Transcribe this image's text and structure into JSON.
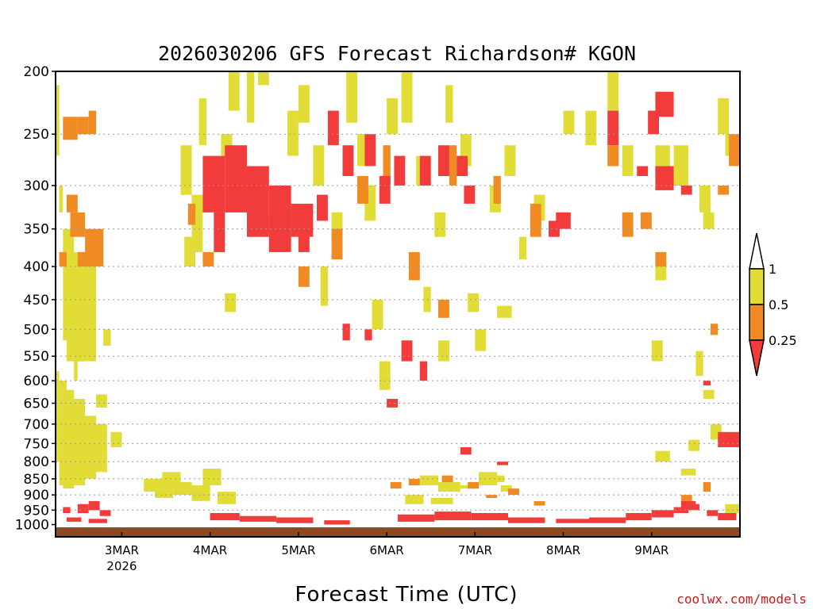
{
  "chart_data": {
    "type": "heatmap",
    "title": "2026030206 GFS Forecast Richardson# KGON",
    "xlabel": "Forecast Time (UTC)",
    "ylabel": "",
    "credit": "coolwx.com/models",
    "y_ticks": [
      "200",
      "250",
      "300",
      "350",
      "400",
      "450",
      "500",
      "550",
      "600",
      "650",
      "700",
      "750",
      "800",
      "850",
      "900",
      "950",
      "1000"
    ],
    "y_range_hpa": [
      200,
      1010
    ],
    "x_ticks": [
      {
        "label": "3MAR",
        "sublabel": "2026",
        "hour": 18
      },
      {
        "label": "4MAR",
        "sublabel": "",
        "hour": 42
      },
      {
        "label": "5MAR",
        "sublabel": "",
        "hour": 66
      },
      {
        "label": "6MAR",
        "sublabel": "",
        "hour": 90
      },
      {
        "label": "7MAR",
        "sublabel": "",
        "hour": 114
      },
      {
        "label": "8MAR",
        "sublabel": "",
        "hour": 138
      },
      {
        "label": "9MAR",
        "sublabel": "",
        "hour": 162
      }
    ],
    "x_range_hours": [
      0,
      186
    ],
    "legend": {
      "levels": [
        "1",
        "0.5",
        "0.25"
      ],
      "bins": [
        {
          "range": "above 1",
          "color": "#ffffff"
        },
        {
          "range": "0.5 to 1",
          "color": "#e2dc36"
        },
        {
          "range": "0.25 to 0.5",
          "color": "#f08a22"
        },
        {
          "range": "below 0.25",
          "color": "#f23c3c"
        }
      ]
    },
    "colors": {
      "yellow": "#e2dc36",
      "orange": "#f08a22",
      "red": "#f23c3c",
      "ground": "#8b4a22"
    },
    "series": [
      {
        "name": "Ri 0.5-1 (yellow)",
        "cells": [
          [
            0,
            1,
            210,
            270
          ],
          [
            0,
            1,
            580,
            800
          ],
          [
            1,
            3,
            600,
            870
          ],
          [
            2,
            5,
            620,
            880
          ],
          [
            4,
            8,
            640,
            870
          ],
          [
            6,
            11,
            680,
            850
          ],
          [
            2,
            5,
            350,
            520
          ],
          [
            3,
            8,
            380,
            560
          ],
          [
            5,
            11,
            400,
            560
          ],
          [
            11,
            14,
            630,
            660
          ],
          [
            11,
            14,
            700,
            830
          ],
          [
            15,
            18,
            720,
            760
          ],
          [
            13,
            15,
            500,
            530
          ],
          [
            7,
            10,
            440,
            500
          ],
          [
            5,
            6,
            520,
            600
          ],
          [
            1,
            2,
            300,
            330
          ],
          [
            24,
            29,
            850,
            890
          ],
          [
            27,
            32,
            870,
            910
          ],
          [
            29,
            34,
            830,
            880
          ],
          [
            32,
            37,
            860,
            900
          ],
          [
            37,
            42,
            870,
            920
          ],
          [
            40,
            45,
            820,
            870
          ],
          [
            44,
            49,
            890,
            930
          ],
          [
            34,
            37,
            260,
            310
          ],
          [
            37,
            40,
            310,
            380
          ],
          [
            39,
            41,
            220,
            260
          ],
          [
            35,
            38,
            360,
            400
          ],
          [
            46,
            49,
            440,
            470
          ],
          [
            45,
            48,
            250,
            270
          ],
          [
            47,
            50,
            200,
            230
          ],
          [
            52,
            54,
            200,
            240
          ],
          [
            55,
            58,
            180,
            210
          ],
          [
            63,
            66,
            230,
            270
          ],
          [
            66,
            69,
            210,
            240
          ],
          [
            70,
            73,
            260,
            300
          ],
          [
            72,
            74,
            400,
            460
          ],
          [
            75,
            78,
            330,
            360
          ],
          [
            79,
            82,
            200,
            240
          ],
          [
            82,
            85,
            250,
            280
          ],
          [
            84,
            87,
            300,
            340
          ],
          [
            86,
            89,
            450,
            500
          ],
          [
            88,
            91,
            560,
            620
          ],
          [
            90,
            93,
            220,
            250
          ],
          [
            94,
            97,
            200,
            240
          ],
          [
            98,
            101,
            270,
            300
          ],
          [
            100,
            102,
            430,
            470
          ],
          [
            103,
            106,
            330,
            360
          ],
          [
            104,
            107,
            520,
            560
          ],
          [
            106,
            108,
            210,
            240
          ],
          [
            110,
            113,
            250,
            280
          ],
          [
            112,
            115,
            440,
            470
          ],
          [
            114,
            117,
            500,
            540
          ],
          [
            118,
            121,
            300,
            330
          ],
          [
            120,
            124,
            460,
            480
          ],
          [
            99,
            104,
            840,
            870
          ],
          [
            104,
            110,
            860,
            890
          ],
          [
            110,
            115,
            870,
            880
          ],
          [
            115,
            120,
            830,
            870
          ],
          [
            95,
            100,
            900,
            930
          ],
          [
            102,
            108,
            910,
            930
          ],
          [
            118,
            122,
            840,
            860
          ],
          [
            121,
            124,
            870,
            890
          ],
          [
            122,
            125,
            260,
            290
          ],
          [
            126,
            128,
            360,
            390
          ],
          [
            130,
            133,
            310,
            340
          ],
          [
            138,
            141,
            230,
            250
          ],
          [
            144,
            147,
            230,
            260
          ],
          [
            150,
            153,
            200,
            230
          ],
          [
            154,
            157,
            260,
            290
          ],
          [
            163,
            167,
            260,
            290
          ],
          [
            168,
            172,
            260,
            300
          ],
          [
            163,
            166,
            400,
            420
          ],
          [
            162,
            165,
            520,
            560
          ],
          [
            163,
            167,
            770,
            800
          ],
          [
            175,
            178,
            300,
            330
          ],
          [
            176,
            179,
            330,
            350
          ],
          [
            172,
            175,
            740,
            770
          ],
          [
            174,
            176,
            540,
            590
          ],
          [
            176,
            179,
            620,
            640
          ],
          [
            182,
            186,
            250,
            270
          ],
          [
            180,
            183,
            220,
            250
          ],
          [
            178,
            181,
            700,
            740
          ],
          [
            182,
            186,
            930,
            960
          ],
          [
            170,
            174,
            820,
            840
          ]
        ]
      },
      {
        "name": "Ri 0.25-0.5 (orange)",
        "cells": [
          [
            2,
            6,
            235,
            255
          ],
          [
            6,
            9,
            235,
            250
          ],
          [
            9,
            11,
            230,
            250
          ],
          [
            4,
            8,
            330,
            360
          ],
          [
            8,
            13,
            350,
            400
          ],
          [
            6,
            9,
            380,
            400
          ],
          [
            1,
            3,
            380,
            400
          ],
          [
            3,
            6,
            310,
            330
          ],
          [
            40,
            43,
            380,
            400
          ],
          [
            36,
            38,
            320,
            345
          ],
          [
            50,
            53,
            300,
            320
          ],
          [
            58,
            62,
            330,
            360
          ],
          [
            66,
            69,
            400,
            430
          ],
          [
            75,
            78,
            350,
            390
          ],
          [
            82,
            85,
            290,
            320
          ],
          [
            89,
            91,
            260,
            300
          ],
          [
            96,
            99,
            380,
            420
          ],
          [
            104,
            107,
            450,
            480
          ],
          [
            107,
            109,
            260,
            300
          ],
          [
            119,
            121,
            290,
            320
          ],
          [
            129,
            132,
            340,
            360
          ],
          [
            91,
            94,
            860,
            880
          ],
          [
            96,
            99,
            850,
            870
          ],
          [
            105,
            108,
            840,
            860
          ],
          [
            112,
            115,
            860,
            880
          ],
          [
            117,
            120,
            900,
            910
          ],
          [
            123,
            126,
            880,
            900
          ],
          [
            129,
            132,
            320,
            345
          ],
          [
            150,
            153,
            260,
            280
          ],
          [
            154,
            157,
            330,
            360
          ],
          [
            159,
            162,
            330,
            350
          ],
          [
            163,
            166,
            380,
            400
          ],
          [
            170,
            173,
            900,
            920
          ],
          [
            176,
            178,
            860,
            890
          ],
          [
            178,
            180,
            490,
            510
          ],
          [
            183,
            186,
            250,
            280
          ],
          [
            180,
            183,
            300,
            310
          ],
          [
            130,
            133,
            920,
            935
          ]
        ]
      },
      {
        "name": "Ri below 0.25 (red)",
        "cells": [
          [
            2,
            4,
            940,
            960
          ],
          [
            6,
            9,
            930,
            960
          ],
          [
            9,
            12,
            920,
            950
          ],
          [
            12,
            15,
            950,
            970
          ],
          [
            3,
            7,
            975,
            990
          ],
          [
            9,
            14,
            980,
            995
          ],
          [
            40,
            46,
            270,
            330
          ],
          [
            46,
            52,
            260,
            330
          ],
          [
            52,
            58,
            280,
            360
          ],
          [
            58,
            64,
            300,
            380
          ],
          [
            64,
            70,
            320,
            360
          ],
          [
            43,
            46,
            330,
            380
          ],
          [
            60,
            63,
            300,
            330
          ],
          [
            66,
            69,
            350,
            380
          ],
          [
            71,
            74,
            310,
            340
          ],
          [
            74,
            77,
            230,
            260
          ],
          [
            78,
            81,
            260,
            290
          ],
          [
            84,
            87,
            250,
            280
          ],
          [
            88,
            91,
            290,
            320
          ],
          [
            92,
            95,
            270,
            300
          ],
          [
            99,
            102,
            270,
            300
          ],
          [
            104,
            107,
            260,
            290
          ],
          [
            111,
            114,
            300,
            320
          ],
          [
            78,
            80,
            490,
            520
          ],
          [
            84,
            86,
            500,
            520
          ],
          [
            94,
            97,
            520,
            560
          ],
          [
            99,
            101,
            560,
            600
          ],
          [
            90,
            93,
            640,
            660
          ],
          [
            110,
            113,
            760,
            780
          ],
          [
            42,
            50,
            960,
            985
          ],
          [
            50,
            60,
            970,
            990
          ],
          [
            60,
            70,
            975,
            995
          ],
          [
            73,
            80,
            985,
            1000
          ],
          [
            93,
            103,
            965,
            990
          ],
          [
            103,
            113,
            955,
            985
          ],
          [
            113,
            123,
            960,
            985
          ],
          [
            123,
            133,
            975,
            995
          ],
          [
            136,
            145,
            980,
            995
          ],
          [
            145,
            155,
            975,
            995
          ],
          [
            155,
            162,
            960,
            985
          ],
          [
            162,
            168,
            950,
            975
          ],
          [
            168,
            172,
            940,
            960
          ],
          [
            172,
            175,
            930,
            950
          ],
          [
            170,
            174,
            920,
            940
          ],
          [
            177,
            180,
            950,
            970
          ],
          [
            180,
            185,
            960,
            985
          ],
          [
            163,
            168,
            215,
            235
          ],
          [
            163,
            168,
            280,
            305
          ],
          [
            170,
            173,
            300,
            310
          ],
          [
            150,
            153,
            230,
            260
          ],
          [
            158,
            161,
            280,
            290
          ],
          [
            161,
            164,
            230,
            250
          ],
          [
            180,
            186,
            720,
            760
          ],
          [
            176,
            178,
            600,
            610
          ],
          [
            120,
            123,
            800,
            810
          ],
          [
            134,
            137,
            340,
            360
          ],
          [
            136,
            140,
            330,
            350
          ],
          [
            109,
            112,
            270,
            290
          ]
        ]
      }
    ]
  }
}
